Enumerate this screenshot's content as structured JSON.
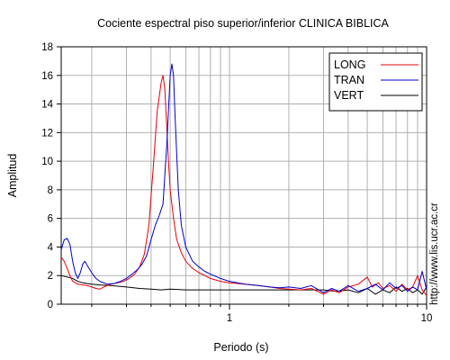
{
  "chart_data": {
    "type": "line",
    "title": "Cociente espectral piso superior/inferior  CLINICA BIBLICA",
    "xlabel": "Periodo (s)",
    "ylabel": "Amplitud",
    "xscale": "log",
    "xlim": [
      0.14,
      10
    ],
    "ylim": [
      0,
      18
    ],
    "yticks": [
      0,
      2,
      4,
      6,
      8,
      10,
      12,
      14,
      16,
      18
    ],
    "xtick_labels": [
      {
        "value": 1,
        "label": "1"
      },
      {
        "value": 10,
        "label": "10"
      }
    ],
    "grid": true,
    "legend_position": "top-right",
    "credit": "http://www.lis.ucr.ac.cr",
    "series": [
      {
        "name": "LONG",
        "color": "#e8000b",
        "points": [
          [
            0.14,
            3.3
          ],
          [
            0.145,
            3.0
          ],
          [
            0.15,
            2.5
          ],
          [
            0.155,
            2.0
          ],
          [
            0.16,
            1.6
          ],
          [
            0.17,
            1.4
          ],
          [
            0.18,
            1.35
          ],
          [
            0.19,
            1.3
          ],
          [
            0.2,
            1.2
          ],
          [
            0.21,
            1.1
          ],
          [
            0.22,
            1.05
          ],
          [
            0.23,
            1.2
          ],
          [
            0.24,
            1.3
          ],
          [
            0.25,
            1.4
          ],
          [
            0.27,
            1.5
          ],
          [
            0.29,
            1.6
          ],
          [
            0.31,
            1.8
          ],
          [
            0.33,
            2.1
          ],
          [
            0.35,
            2.6
          ],
          [
            0.37,
            3.5
          ],
          [
            0.39,
            5.5
          ],
          [
            0.41,
            9.5
          ],
          [
            0.43,
            13.5
          ],
          [
            0.45,
            15.5
          ],
          [
            0.46,
            16.0
          ],
          [
            0.47,
            15.0
          ],
          [
            0.48,
            12.5
          ],
          [
            0.49,
            10.0
          ],
          [
            0.5,
            8.0
          ],
          [
            0.52,
            6.0
          ],
          [
            0.54,
            4.5
          ],
          [
            0.57,
            3.6
          ],
          [
            0.6,
            3.0
          ],
          [
            0.65,
            2.5
          ],
          [
            0.7,
            2.2
          ],
          [
            0.75,
            2.0
          ],
          [
            0.8,
            1.8
          ],
          [
            0.9,
            1.6
          ],
          [
            1.0,
            1.5
          ],
          [
            1.2,
            1.4
          ],
          [
            1.4,
            1.3
          ],
          [
            1.6,
            1.2
          ],
          [
            1.8,
            1.1
          ],
          [
            2.0,
            1.05
          ],
          [
            2.3,
            1.0
          ],
          [
            2.6,
            1.1
          ],
          [
            3.0,
            0.7
          ],
          [
            3.3,
            1.0
          ],
          [
            3.6,
            0.8
          ],
          [
            4.0,
            1.2
          ],
          [
            4.5,
            1.4
          ],
          [
            5.0,
            1.9
          ],
          [
            5.3,
            1.2
          ],
          [
            5.7,
            1.5
          ],
          [
            6.0,
            1.1
          ],
          [
            6.5,
            1.3
          ],
          [
            7.0,
            0.9
          ],
          [
            7.5,
            1.4
          ],
          [
            8.0,
            1.0
          ],
          [
            8.5,
            1.2
          ],
          [
            9.0,
            2.0
          ],
          [
            9.5,
            1.0
          ],
          [
            10.0,
            0.6
          ]
        ]
      },
      {
        "name": "TRAN",
        "color": "#0000cc",
        "points": [
          [
            0.14,
            3.8
          ],
          [
            0.145,
            4.5
          ],
          [
            0.15,
            4.6
          ],
          [
            0.155,
            4.2
          ],
          [
            0.16,
            3.0
          ],
          [
            0.165,
            2.2
          ],
          [
            0.17,
            1.8
          ],
          [
            0.175,
            2.2
          ],
          [
            0.18,
            2.8
          ],
          [
            0.185,
            3.0
          ],
          [
            0.19,
            2.7
          ],
          [
            0.2,
            2.2
          ],
          [
            0.21,
            1.8
          ],
          [
            0.22,
            1.6
          ],
          [
            0.24,
            1.4
          ],
          [
            0.26,
            1.45
          ],
          [
            0.28,
            1.6
          ],
          [
            0.3,
            1.8
          ],
          [
            0.32,
            2.1
          ],
          [
            0.34,
            2.4
          ],
          [
            0.36,
            2.8
          ],
          [
            0.38,
            3.4
          ],
          [
            0.4,
            4.5
          ],
          [
            0.42,
            5.5
          ],
          [
            0.44,
            6.2
          ],
          [
            0.46,
            7.0
          ],
          [
            0.48,
            11.0
          ],
          [
            0.5,
            16.0
          ],
          [
            0.51,
            16.8
          ],
          [
            0.52,
            16.0
          ],
          [
            0.53,
            13.0
          ],
          [
            0.55,
            8.0
          ],
          [
            0.57,
            5.5
          ],
          [
            0.6,
            4.0
          ],
          [
            0.65,
            3.0
          ],
          [
            0.7,
            2.6
          ],
          [
            0.75,
            2.3
          ],
          [
            0.8,
            2.1
          ],
          [
            0.9,
            1.8
          ],
          [
            1.0,
            1.6
          ],
          [
            1.2,
            1.4
          ],
          [
            1.4,
            1.3
          ],
          [
            1.6,
            1.2
          ],
          [
            1.8,
            1.15
          ],
          [
            2.0,
            1.2
          ],
          [
            2.3,
            1.1
          ],
          [
            2.6,
            1.3
          ],
          [
            3.0,
            0.8
          ],
          [
            3.3,
            1.1
          ],
          [
            3.6,
            0.9
          ],
          [
            4.0,
            1.3
          ],
          [
            4.5,
            0.9
          ],
          [
            5.0,
            1.1
          ],
          [
            5.5,
            1.4
          ],
          [
            6.0,
            1.0
          ],
          [
            6.5,
            1.5
          ],
          [
            7.0,
            1.1
          ],
          [
            7.5,
            1.3
          ],
          [
            8.0,
            0.9
          ],
          [
            8.5,
            1.2
          ],
          [
            9.0,
            1.0
          ],
          [
            9.5,
            2.3
          ],
          [
            10.0,
            1.0
          ]
        ]
      },
      {
        "name": "VERT",
        "color": "#000000",
        "points": [
          [
            0.14,
            2.0
          ],
          [
            0.15,
            1.9
          ],
          [
            0.16,
            1.8
          ],
          [
            0.17,
            1.6
          ],
          [
            0.18,
            1.5
          ],
          [
            0.2,
            1.4
          ],
          [
            0.22,
            1.35
          ],
          [
            0.25,
            1.3
          ],
          [
            0.3,
            1.2
          ],
          [
            0.35,
            1.1
          ],
          [
            0.4,
            1.05
          ],
          [
            0.45,
            1.0
          ],
          [
            0.5,
            1.05
          ],
          [
            0.6,
            1.0
          ],
          [
            0.7,
            1.0
          ],
          [
            0.8,
            1.0
          ],
          [
            1.0,
            1.0
          ],
          [
            1.2,
            1.0
          ],
          [
            1.5,
            1.0
          ],
          [
            2.0,
            1.0
          ],
          [
            2.5,
            1.0
          ],
          [
            3.0,
            1.0
          ],
          [
            3.5,
            0.9
          ],
          [
            4.0,
            1.0
          ],
          [
            4.5,
            0.8
          ],
          [
            5.0,
            1.1
          ],
          [
            5.5,
            0.7
          ],
          [
            6.0,
            1.0
          ],
          [
            6.5,
            0.8
          ],
          [
            7.0,
            1.2
          ],
          [
            7.5,
            0.9
          ],
          [
            8.0,
            1.1
          ],
          [
            8.5,
            0.8
          ],
          [
            9.0,
            1.0
          ],
          [
            9.5,
            0.7
          ],
          [
            10.0,
            1.2
          ]
        ]
      }
    ]
  }
}
